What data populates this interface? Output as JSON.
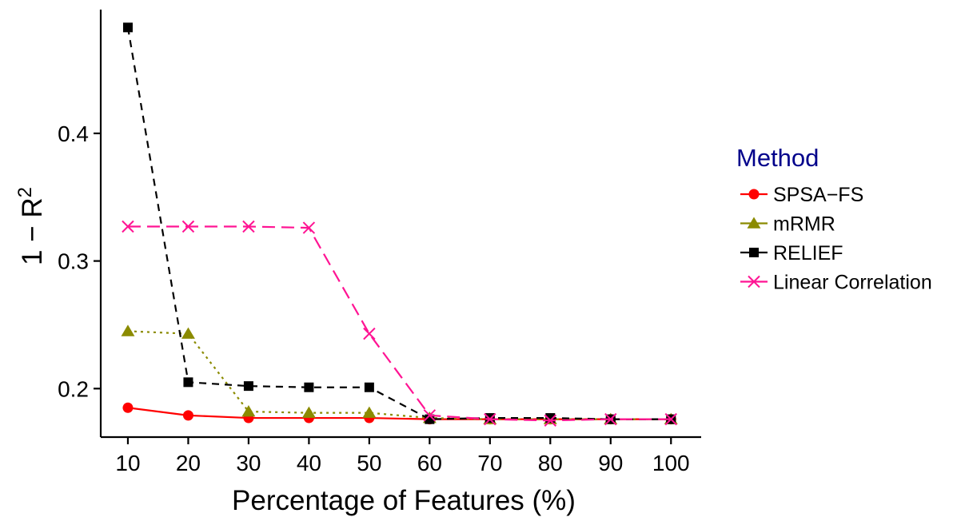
{
  "chart_data": {
    "type": "line",
    "xlabel": "Percentage of Features (%)",
    "ylabel": "1 − R²",
    "ylabel_base": "1 − R",
    "ylabel_sup": "2",
    "x": [
      10,
      20,
      30,
      40,
      50,
      60,
      70,
      80,
      90,
      100
    ],
    "x_ticks": [
      "10",
      "20",
      "30",
      "40",
      "50",
      "60",
      "70",
      "80",
      "90",
      "100"
    ],
    "y_ticks": [
      "0.2",
      "0.3",
      "0.4"
    ],
    "y_tick_values": [
      0.2,
      0.3,
      0.4
    ],
    "xlim": [
      5.5,
      105
    ],
    "ylim": [
      0.162,
      0.497
    ],
    "grid": false,
    "legend": {
      "title": "Method",
      "placement": "right"
    },
    "series": [
      {
        "name": "SPSA−FS",
        "color": "#ff0000",
        "marker": "circle",
        "line_style": "solid",
        "values": [
          0.185,
          0.179,
          0.177,
          0.177,
          0.177,
          0.176,
          0.176,
          0.176,
          0.176,
          0.176
        ]
      },
      {
        "name": "mRMR",
        "color": "#8b8b00",
        "marker": "triangle",
        "line_style": "dotted",
        "values": [
          0.245,
          0.243,
          0.182,
          0.181,
          0.181,
          0.177,
          0.176,
          0.176,
          0.176,
          0.176
        ]
      },
      {
        "name": "RELIEF",
        "color": "#000000",
        "marker": "square",
        "line_style": "dashed",
        "values": [
          0.483,
          0.205,
          0.202,
          0.201,
          0.201,
          0.176,
          0.177,
          0.177,
          0.176,
          0.176
        ]
      },
      {
        "name": "Linear Correlation",
        "color": "#ff1493",
        "marker": "x",
        "line_style": "longdash",
        "values": [
          0.327,
          0.327,
          0.327,
          0.326,
          0.243,
          0.179,
          0.176,
          0.175,
          0.176,
          0.176
        ]
      }
    ]
  }
}
